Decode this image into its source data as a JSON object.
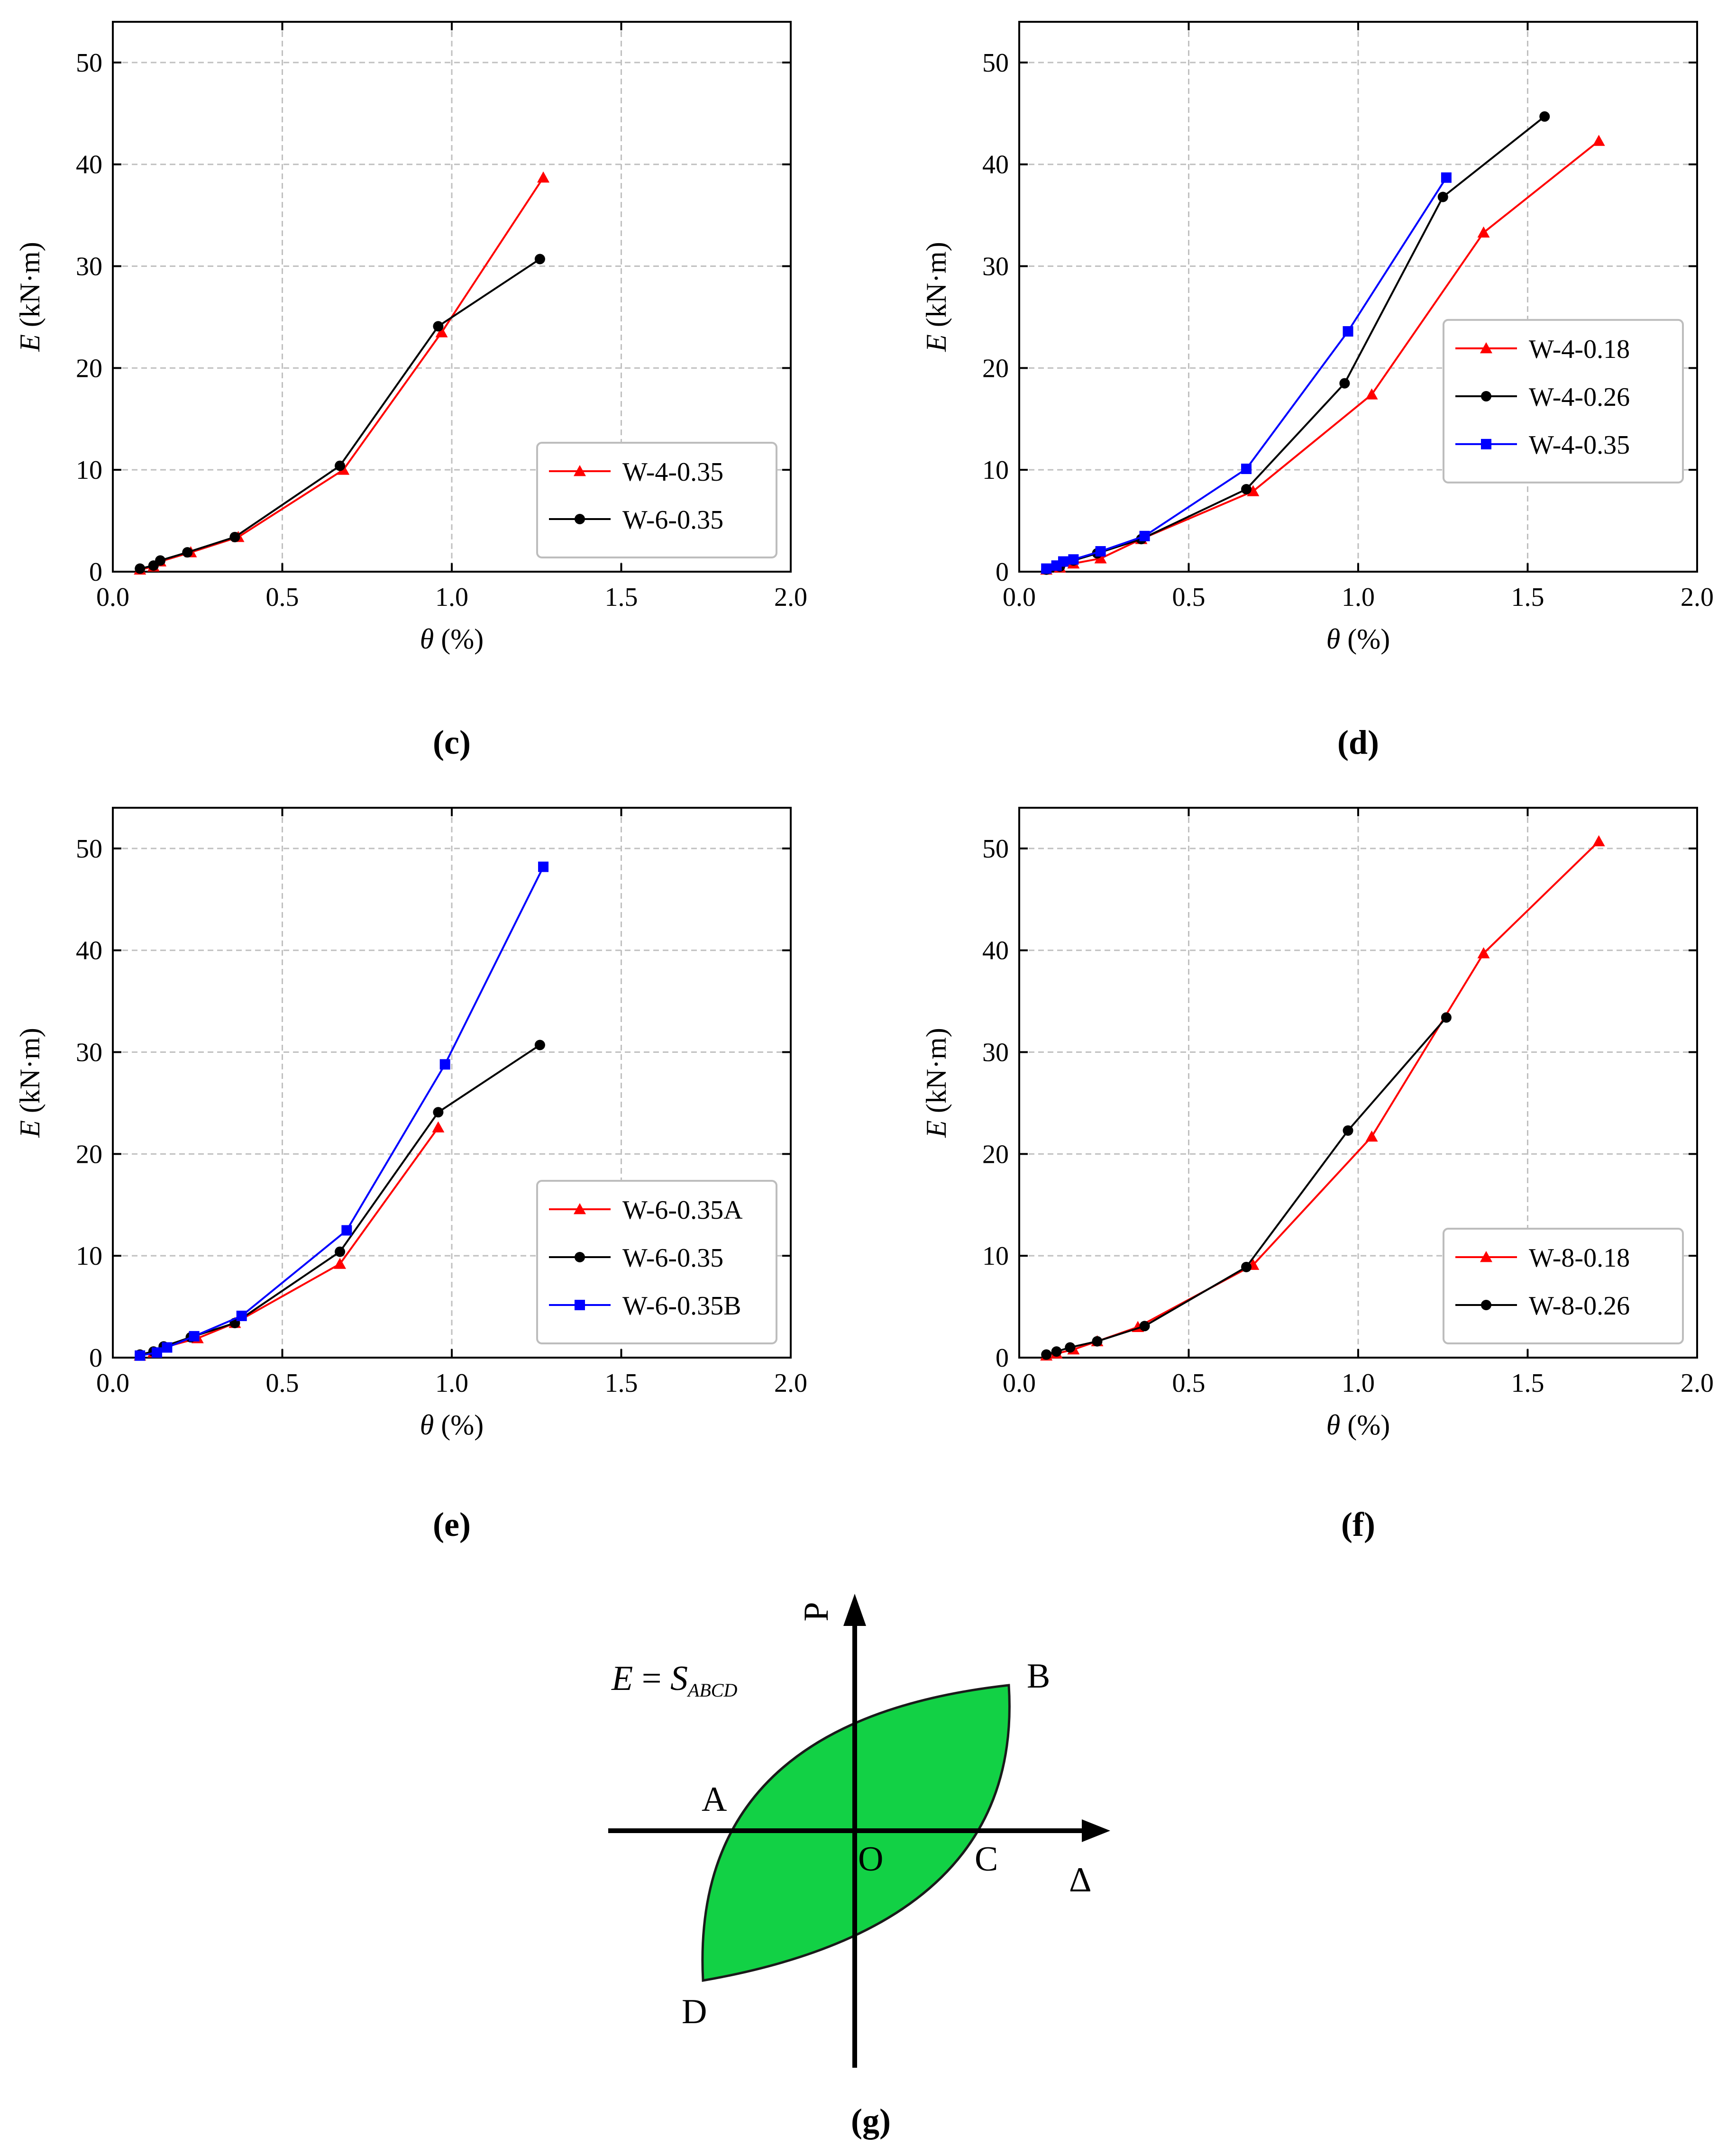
{
  "chart_data": [
    {
      "type": "line",
      "panel_label": "c",
      "caption": "(c)",
      "xlabel_var": "θ",
      "xlabel_unit": " (%)",
      "ylabel_var": "E",
      "ylabel_unit": " (kN·m)",
      "xlim": [
        0.0,
        2.0
      ],
      "ylim": [
        0,
        54
      ],
      "xticks": [
        0.0,
        0.5,
        1.0,
        1.5,
        2.0
      ],
      "xtick_labels": [
        "0.0",
        "0.5",
        "1.0",
        "1.5",
        "2.0"
      ],
      "yticks": [
        0,
        10,
        20,
        30,
        40,
        50
      ],
      "ytick_labels": [
        "0",
        "10",
        "20",
        "30",
        "40",
        "50"
      ],
      "grid": true,
      "legend_position": "bottom-right",
      "series": [
        {
          "name": "W-4-0.35",
          "color": "#ff0000",
          "marker": "triangle",
          "x": [
            0.08,
            0.12,
            0.14,
            0.23,
            0.37,
            0.68,
            0.97,
            1.27
          ],
          "y": [
            0.2,
            0.5,
            1.0,
            1.9,
            3.4,
            10.0,
            23.5,
            38.7
          ]
        },
        {
          "name": "W-6-0.35",
          "color": "#000000",
          "marker": "circle",
          "x": [
            0.08,
            0.12,
            0.14,
            0.22,
            0.36,
            0.67,
            0.96,
            1.26
          ],
          "y": [
            0.3,
            0.6,
            1.1,
            1.9,
            3.4,
            10.4,
            24.1,
            30.7
          ]
        }
      ]
    },
    {
      "type": "line",
      "panel_label": "d",
      "caption": "(d)",
      "xlabel_var": "θ",
      "xlabel_unit": " (%)",
      "ylabel_var": "E",
      "ylabel_unit": " (kN·m)",
      "xlim": [
        0.0,
        2.0
      ],
      "ylim": [
        0,
        54
      ],
      "xticks": [
        0.0,
        0.5,
        1.0,
        1.5,
        2.0
      ],
      "xtick_labels": [
        "0.0",
        "0.5",
        "1.0",
        "1.5",
        "2.0"
      ],
      "yticks": [
        0,
        10,
        20,
        30,
        40,
        50
      ],
      "ytick_labels": [
        "0",
        "10",
        "20",
        "30",
        "40",
        "50"
      ],
      "grid": true,
      "legend_position": "right",
      "series": [
        {
          "name": "W-4-0.18",
          "color": "#ff0000",
          "marker": "triangle",
          "x": [
            0.08,
            0.12,
            0.16,
            0.24,
            0.36,
            0.69,
            1.04,
            1.37,
            1.71
          ],
          "y": [
            0.2,
            0.4,
            0.8,
            1.3,
            3.2,
            7.9,
            17.4,
            33.3,
            42.3
          ]
        },
        {
          "name": "W-4-0.26",
          "color": "#000000",
          "marker": "circle",
          "x": [
            0.08,
            0.12,
            0.16,
            0.23,
            0.36,
            0.67,
            0.96,
            1.25,
            1.55
          ],
          "y": [
            0.2,
            0.5,
            1.1,
            1.8,
            3.2,
            8.1,
            18.5,
            36.8,
            44.7
          ]
        },
        {
          "name": "W-4-0.35",
          "color": "#0000ff",
          "marker": "square",
          "x": [
            0.08,
            0.11,
            0.13,
            0.16,
            0.24,
            0.37,
            0.67,
            0.97,
            1.26
          ],
          "y": [
            0.3,
            0.6,
            1.0,
            1.2,
            2.0,
            3.5,
            10.1,
            23.6,
            38.7
          ]
        }
      ]
    },
    {
      "type": "line",
      "panel_label": "e",
      "caption": "(e)",
      "xlabel_var": "θ",
      "xlabel_unit": " (%)",
      "ylabel_var": "E",
      "ylabel_unit": " (kN·m)",
      "xlim": [
        0.0,
        2.0
      ],
      "ylim": [
        0,
        54
      ],
      "xticks": [
        0.0,
        0.5,
        1.0,
        1.5,
        2.0
      ],
      "xtick_labels": [
        "0.0",
        "0.5",
        "1.0",
        "1.5",
        "2.0"
      ],
      "yticks": [
        0,
        10,
        20,
        30,
        40,
        50
      ],
      "ytick_labels": [
        "0",
        "10",
        "20",
        "30",
        "40",
        "50"
      ],
      "grid": true,
      "legend_position": "bottom-right",
      "series": [
        {
          "name": "W-6-0.35A",
          "color": "#ff0000",
          "marker": "triangle",
          "x": [
            0.08,
            0.12,
            0.15,
            0.25,
            0.36,
            0.67,
            0.96
          ],
          "y": [
            0.2,
            0.5,
            1.0,
            1.9,
            3.4,
            9.2,
            22.6
          ]
        },
        {
          "name": "W-6-0.35",
          "color": "#000000",
          "marker": "circle",
          "x": [
            0.08,
            0.12,
            0.15,
            0.23,
            0.36,
            0.67,
            0.96,
            1.26
          ],
          "y": [
            0.3,
            0.6,
            1.1,
            2.0,
            3.4,
            10.4,
            24.1,
            30.7
          ]
        },
        {
          "name": "W-6-0.35B",
          "color": "#0000ff",
          "marker": "square",
          "x": [
            0.08,
            0.13,
            0.16,
            0.24,
            0.38,
            0.69,
            0.98,
            1.27
          ],
          "y": [
            0.2,
            0.5,
            1.0,
            2.1,
            4.1,
            12.5,
            28.8,
            48.2
          ]
        }
      ]
    },
    {
      "type": "line",
      "panel_label": "f",
      "caption": "(f)",
      "xlabel_var": "θ",
      "xlabel_unit": " (%)",
      "ylabel_var": "E",
      "ylabel_unit": " (kN·m)",
      "xlim": [
        0.0,
        2.0
      ],
      "ylim": [
        0,
        54
      ],
      "xticks": [
        0.0,
        0.5,
        1.0,
        1.5,
        2.0
      ],
      "xtick_labels": [
        "0.0",
        "0.5",
        "1.0",
        "1.5",
        "2.0"
      ],
      "yticks": [
        0,
        10,
        20,
        30,
        40,
        50
      ],
      "ytick_labels": [
        "0",
        "10",
        "20",
        "30",
        "40",
        "50"
      ],
      "grid": true,
      "legend_position": "bottom-right",
      "series": [
        {
          "name": "W-8-0.18",
          "color": "#ff0000",
          "marker": "triangle",
          "x": [
            0.08,
            0.11,
            0.16,
            0.23,
            0.35,
            0.69,
            1.04,
            1.37,
            1.71
          ],
          "y": [
            0.2,
            0.4,
            0.8,
            1.6,
            3.0,
            9.1,
            21.7,
            39.7,
            50.7
          ]
        },
        {
          "name": "W-8-0.26",
          "color": "#000000",
          "marker": "circle",
          "x": [
            0.08,
            0.11,
            0.15,
            0.23,
            0.37,
            0.67,
            0.97,
            1.26
          ],
          "y": [
            0.3,
            0.6,
            1.0,
            1.6,
            3.1,
            8.9,
            22.3,
            33.4
          ]
        }
      ]
    }
  ],
  "diagram_g": {
    "caption": "(g)",
    "formula_lhs": "E",
    "formula_eq": " = ",
    "formula_s": "S",
    "formula_sub": "ABCD",
    "point_a": "A",
    "point_b": "B",
    "point_c": "C",
    "point_d": "D",
    "origin": "O",
    "axis_p": "P",
    "axis_delta": "Δ",
    "fill_color": "#12d145"
  }
}
